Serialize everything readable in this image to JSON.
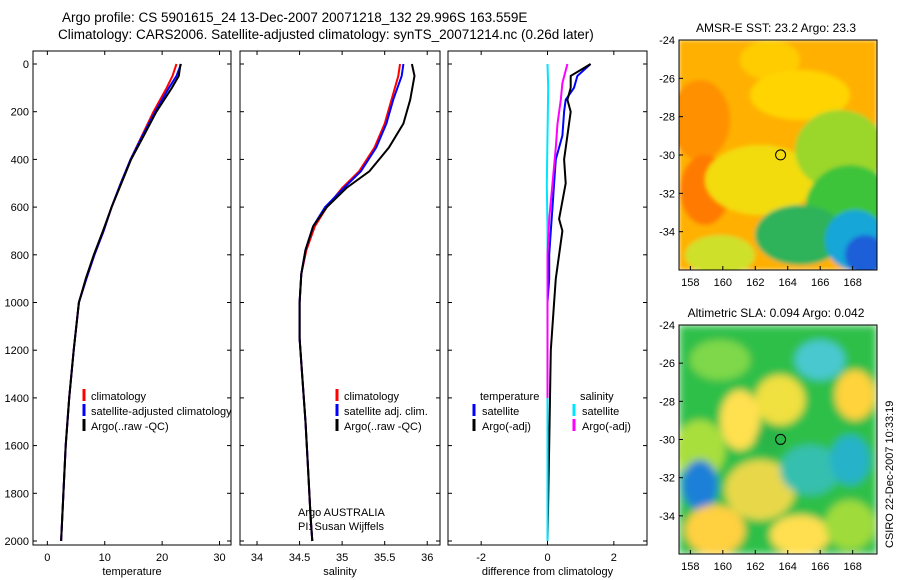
{
  "header": {
    "line1": "Argo profile: CS 5901615_24 13-Dec-2007 20071218_132 29.996S 163.559E",
    "line2": "Climatology: CARS2006. Satellite-adjusted climatology: synTS_20071214.nc (0.26d later)"
  },
  "side_label": "CSIRO 22-Dec-2007 10:33:19",
  "colors": {
    "climatology": "#ff0000",
    "satellite": "#0000ff",
    "argo": "#000000",
    "sal_sat": "#00e5ff",
    "sal_argo": "#ff00ff"
  },
  "chart_data": [
    {
      "type": "line",
      "xlabel": "temperature",
      "ylabel": "",
      "xlim": [
        -2.5,
        32
      ],
      "ylim": [
        2050,
        0
      ],
      "xticks": [
        "0",
        "10",
        "20",
        "30"
      ],
      "yticks": [
        "0",
        "200",
        "400",
        "600",
        "800",
        "1000",
        "1200",
        "1400",
        "1600",
        "1800",
        "2000"
      ],
      "legend": [
        "climatology",
        "satellite-adjusted climatology",
        "Argo(..raw -QC)"
      ],
      "legend_position": "center-right",
      "series": [
        {
          "name": "climatology",
          "color": "climatology",
          "x": [
            22.5,
            21.8,
            20.8,
            18.5,
            16.5,
            14.5,
            12.8,
            11.2,
            9.8,
            8.2,
            6.8,
            5.5,
            4.6,
            3.8,
            3.2,
            2.8,
            2.5,
            2.4
          ],
          "y": [
            0,
            50,
            100,
            200,
            300,
            400,
            500,
            600,
            700,
            800,
            900,
            1000,
            1200,
            1400,
            1600,
            1800,
            1950,
            2000
          ]
        },
        {
          "name": "satellite-adjusted climatology",
          "color": "satellite",
          "x": [
            23.3,
            22.5,
            21.2,
            18.8,
            16.6,
            14.5,
            12.8,
            11.2,
            9.8,
            8.2,
            6.8,
            5.5,
            4.6,
            3.8,
            3.2,
            2.8,
            2.5,
            2.4
          ],
          "y": [
            0,
            50,
            100,
            200,
            300,
            400,
            500,
            600,
            700,
            800,
            900,
            1000,
            1200,
            1400,
            1600,
            1800,
            1950,
            2000
          ]
        },
        {
          "name": "Argo(..raw -QC)",
          "color": "argo",
          "x": [
            23.2,
            22.9,
            21.7,
            19.0,
            16.8,
            14.6,
            12.9,
            11.2,
            9.7,
            8.1,
            6.7,
            5.5,
            4.6,
            3.8,
            3.2,
            2.8,
            2.5,
            2.4
          ],
          "y": [
            0,
            50,
            100,
            200,
            300,
            400,
            500,
            600,
            700,
            800,
            900,
            1000,
            1200,
            1400,
            1600,
            1800,
            1950,
            2000
          ]
        }
      ]
    },
    {
      "type": "line",
      "xlabel": "salinity",
      "xlim": [
        33.8,
        36.15
      ],
      "ylim": [
        2050,
        0
      ],
      "xticks": [
        "34",
        "34.5",
        "35",
        "35.5",
        "36"
      ],
      "legend": [
        "climatology",
        "satellite adj. clim.",
        "Argo(..raw -QC)"
      ],
      "legend_position": "center-right",
      "annotation": [
        "Argo AUSTRALIA",
        "PI: Susan Wijffels"
      ],
      "series": [
        {
          "name": "climatology",
          "color": "climatology",
          "x": [
            35.68,
            35.66,
            35.58,
            35.5,
            35.38,
            35.2,
            35.0,
            34.82,
            34.68,
            34.58,
            34.52,
            34.5,
            34.5,
            34.53,
            34.57,
            34.6,
            34.63,
            34.65
          ],
          "y": [
            0,
            50,
            150,
            250,
            350,
            450,
            520,
            600,
            680,
            780,
            880,
            1000,
            1150,
            1300,
            1500,
            1700,
            1900,
            2000
          ]
        },
        {
          "name": "satellite adj. clim.",
          "color": "satellite",
          "x": [
            35.72,
            35.7,
            35.6,
            35.52,
            35.4,
            35.22,
            35.02,
            34.8,
            34.66,
            34.57,
            34.52,
            34.5,
            34.5,
            34.53,
            34.57,
            34.6,
            34.63,
            34.65
          ],
          "y": [
            0,
            50,
            150,
            250,
            350,
            450,
            520,
            600,
            680,
            780,
            880,
            1000,
            1150,
            1300,
            1500,
            1700,
            1900,
            2000
          ]
        },
        {
          "name": "Argo(..raw -QC)",
          "color": "argo",
          "x": [
            35.82,
            35.85,
            35.8,
            35.72,
            35.55,
            35.32,
            35.05,
            34.82,
            34.66,
            34.57,
            34.52,
            34.5,
            34.5,
            34.53,
            34.57,
            34.6,
            34.63,
            34.65
          ],
          "y": [
            0,
            50,
            150,
            250,
            350,
            450,
            520,
            600,
            680,
            780,
            880,
            1000,
            1150,
            1300,
            1500,
            1700,
            1900,
            2000
          ]
        }
      ]
    },
    {
      "type": "line",
      "xlabel": "difference from climatology",
      "xlim": [
        -3,
        3
      ],
      "ylim": [
        2050,
        0
      ],
      "xticks": [
        "-2",
        "0",
        "2"
      ],
      "legend": [
        "temperature",
        "satellite",
        "Argo(-adj)",
        "salinity",
        "satellite",
        "Argo(-adj)"
      ],
      "legend_position": "center",
      "series": [
        {
          "name": "satellite",
          "color": "satellite",
          "x": [
            1.3,
            0.9,
            0.8,
            0.55,
            0.5,
            0.45,
            0.25,
            0.2,
            0.15,
            0.1,
            0.05,
            0.05,
            0.0,
            0.0,
            0.0,
            0.0
          ],
          "y": [
            0,
            50,
            100,
            150,
            200,
            300,
            400,
            500,
            600,
            700,
            800,
            900,
            1000,
            1200,
            1600,
            2000
          ]
        },
        {
          "name": "Argo(-adj)",
          "color": "argo",
          "x": [
            1.3,
            0.7,
            0.7,
            0.6,
            0.7,
            0.6,
            0.5,
            0.55,
            0.35,
            0.45,
            0.35,
            0.25,
            0.2,
            0.1,
            0.05,
            0.0
          ],
          "y": [
            0,
            50,
            100,
            150,
            200,
            300,
            400,
            500,
            650,
            700,
            800,
            900,
            1000,
            1200,
            1600,
            2000
          ]
        },
        {
          "name": "salinity satellite",
          "color": "sal_sat",
          "x": [
            0.0,
            0.02,
            0.0,
            -0.02,
            0.0,
            0.0,
            0.0,
            0.0,
            0.0
          ],
          "y": [
            0,
            100,
            300,
            500,
            700,
            1000,
            1400,
            1800,
            2000
          ]
        },
        {
          "name": "salinity Argo(-adj)",
          "color": "sal_argo",
          "x": [
            0.6,
            0.45,
            0.4,
            0.3,
            0.25,
            0.15,
            0.05,
            0.0,
            0.0,
            0.0
          ],
          "y": [
            0,
            80,
            150,
            250,
            350,
            500,
            650,
            800,
            1000,
            1400
          ]
        }
      ]
    },
    {
      "type": "heatmap",
      "title": "AMSR-E SST: 23.2  Argo: 23.3",
      "xlim": [
        157.3,
        169.5
      ],
      "ylim": [
        -36,
        -24
      ],
      "xticks": [
        "158",
        "160",
        "162",
        "164",
        "166",
        "168"
      ],
      "yticks": [
        "-24",
        "-26",
        "-28",
        "-30",
        "-32",
        "-34"
      ],
      "marker": {
        "lon": 163.559,
        "lat": -29.996
      }
    },
    {
      "type": "heatmap",
      "title": "Altimetric SLA: 0.094  Argo: 0.042",
      "xlim": [
        157.3,
        169.5
      ],
      "ylim": [
        -36,
        -24
      ],
      "xticks": [
        "158",
        "160",
        "162",
        "164",
        "166",
        "168"
      ],
      "yticks": [
        "-24",
        "-26",
        "-28",
        "-30",
        "-32",
        "-34"
      ],
      "marker": {
        "lon": 163.559,
        "lat": -29.996
      }
    }
  ]
}
